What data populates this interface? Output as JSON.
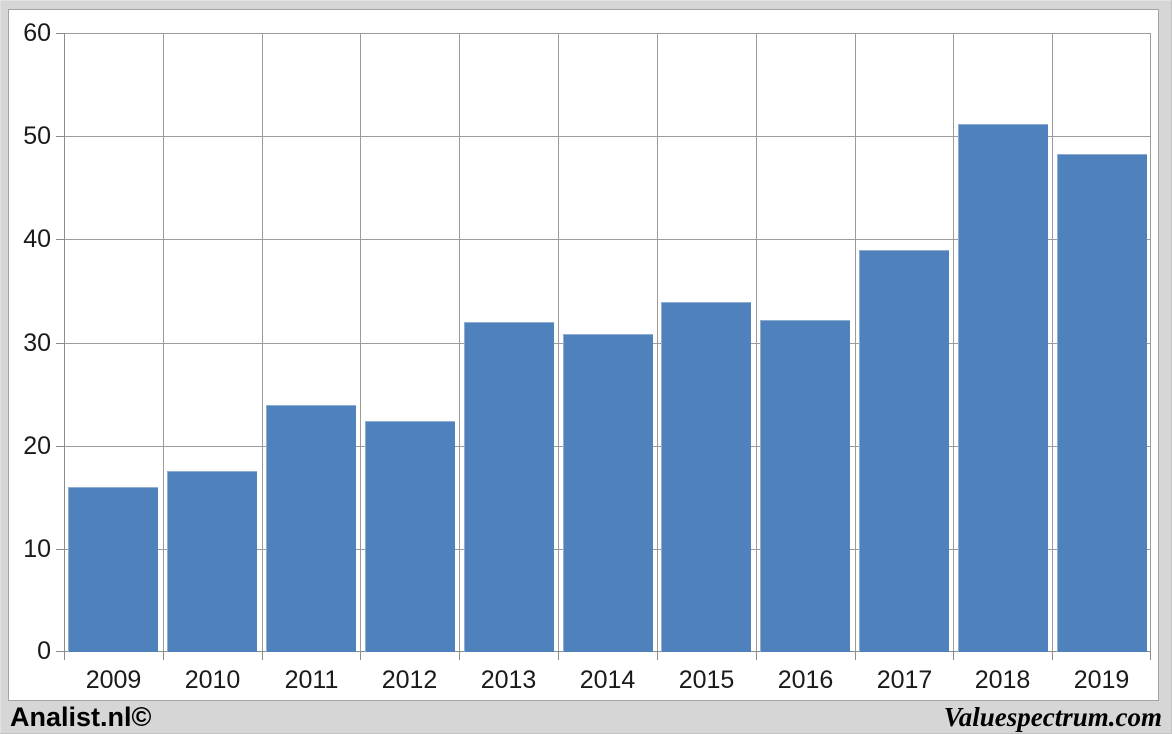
{
  "chart_data": {
    "type": "bar",
    "categories": [
      "2009",
      "2010",
      "2011",
      "2012",
      "2013",
      "2014",
      "2015",
      "2016",
      "2017",
      "2018",
      "2019"
    ],
    "values": [
      16.0,
      17.5,
      23.9,
      22.4,
      32.0,
      30.8,
      33.9,
      32.2,
      39.0,
      51.2,
      48.3
    ],
    "title": "",
    "xlabel": "",
    "ylabel": "",
    "ylim": [
      0,
      60
    ],
    "yticks": [
      0,
      10,
      20,
      30,
      40,
      50,
      60
    ],
    "grid": true,
    "legend": "none",
    "colors": {
      "bar": "#4f81bd",
      "bar_edge": "#8fadd3",
      "gridline": "#9c9c9c",
      "axis_line": "#8c8c8c",
      "tick_text": "#1a1a1a",
      "plot_bg": "#ffffff",
      "frame_bg": "#d6d6d6"
    }
  },
  "footer": {
    "left": "Analist.nl©",
    "right": "Valuespectrum.com"
  }
}
